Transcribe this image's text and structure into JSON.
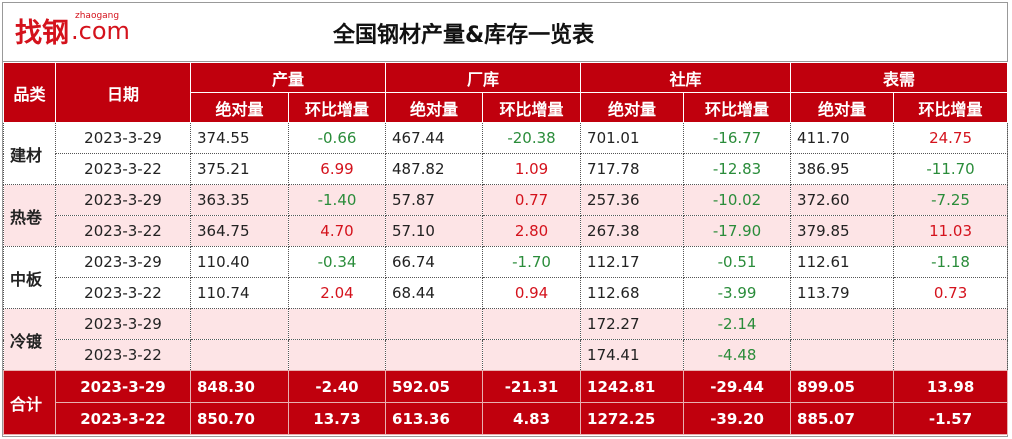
{
  "logo": {
    "brand": "找钢",
    "pinyin": "zhaogang",
    "domain": ".com"
  },
  "title": "全国钢材产量&库存一览表",
  "header": {
    "category": "品类",
    "date": "日期",
    "groups": [
      {
        "name": "产量",
        "sub": [
          "绝对量",
          "环比增量"
        ]
      },
      {
        "name": "厂库",
        "sub": [
          "绝对量",
          "环比增量"
        ]
      },
      {
        "name": "社库",
        "sub": [
          "绝对量",
          "环比增量"
        ]
      },
      {
        "name": "表需",
        "sub": [
          "绝对量",
          "环比增量"
        ]
      }
    ]
  },
  "groups": [
    {
      "name": "建材",
      "rows": [
        {
          "date": "2023-3-29",
          "cells": [
            [
              "374.55",
              "-0.66"
            ],
            [
              "467.44",
              "-20.38"
            ],
            [
              "701.01",
              "-16.77"
            ],
            [
              "411.70",
              "24.75"
            ]
          ]
        },
        {
          "date": "2023-3-22",
          "cells": [
            [
              "375.21",
              "6.99"
            ],
            [
              "487.82",
              "1.09"
            ],
            [
              "717.78",
              "-12.83"
            ],
            [
              "386.95",
              "-11.70"
            ]
          ]
        }
      ]
    },
    {
      "name": "热卷",
      "rows": [
        {
          "date": "2023-3-29",
          "cells": [
            [
              "363.35",
              "-1.40"
            ],
            [
              "57.87",
              "0.77"
            ],
            [
              "257.36",
              "-10.02"
            ],
            [
              "372.60",
              "-7.25"
            ]
          ]
        },
        {
          "date": "2023-3-22",
          "cells": [
            [
              "364.75",
              "4.70"
            ],
            [
              "57.10",
              "2.80"
            ],
            [
              "267.38",
              "-17.90"
            ],
            [
              "379.85",
              "11.03"
            ]
          ]
        }
      ]
    },
    {
      "name": "中板",
      "rows": [
        {
          "date": "2023-3-29",
          "cells": [
            [
              "110.40",
              "-0.34"
            ],
            [
              "66.74",
              "-1.70"
            ],
            [
              "112.17",
              "-0.51"
            ],
            [
              "112.61",
              "-1.18"
            ]
          ]
        },
        {
          "date": "2023-3-22",
          "cells": [
            [
              "110.74",
              "2.04"
            ],
            [
              "68.44",
              "0.94"
            ],
            [
              "112.68",
              "-3.99"
            ],
            [
              "113.79",
              "0.73"
            ]
          ]
        }
      ]
    },
    {
      "name": "冷镀",
      "rows": [
        {
          "date": "2023-3-29",
          "cells": [
            null,
            null,
            [
              "172.27",
              "-2.14"
            ],
            null
          ]
        },
        {
          "date": "2023-3-22",
          "cells": [
            null,
            null,
            [
              "174.41",
              "-4.48"
            ],
            null
          ]
        }
      ]
    }
  ],
  "total": {
    "name": "合计",
    "rows": [
      {
        "date": "2023-3-29",
        "cells": [
          [
            "848.30",
            "-2.40"
          ],
          [
            "592.05",
            "-21.31"
          ],
          [
            "1242.81",
            "-29.44"
          ],
          [
            "899.05",
            "13.98"
          ]
        ]
      },
      {
        "date": "2023-3-22",
        "cells": [
          [
            "850.70",
            "13.73"
          ],
          [
            "613.36",
            "4.83"
          ],
          [
            "1272.25",
            "-39.20"
          ],
          [
            "885.07",
            "-1.57"
          ]
        ]
      }
    ]
  }
}
